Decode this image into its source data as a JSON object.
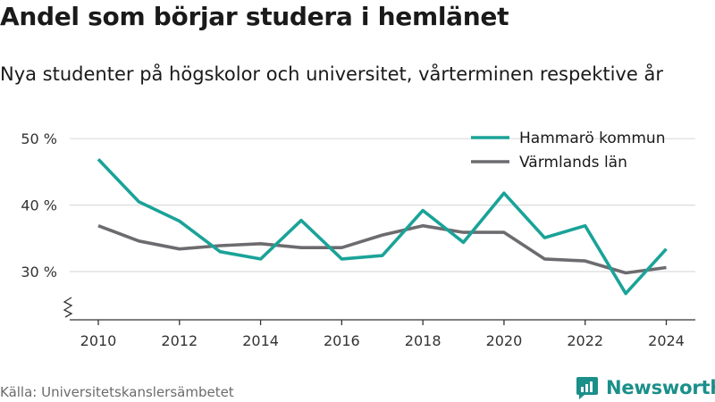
{
  "title": "Andel som börjar studera i hemlänet",
  "subtitle": "Nya studenter på högskolor och universitet, vårterminen respektive år",
  "source": "Källa: Universitetskanslersämbetet",
  "brand": {
    "name": "Newsworthy",
    "icon": "newsworthy-logo-icon",
    "color": "#1b8f8a"
  },
  "chart_data": {
    "type": "line",
    "title": "Andel som börjar studera i hemlänet",
    "subtitle": "Nya studenter på högskolor och universitet, vårterminen respektive år",
    "xlabel": "",
    "ylabel": "",
    "x": [
      2010,
      2011,
      2012,
      2013,
      2014,
      2015,
      2016,
      2017,
      2018,
      2019,
      2020,
      2021,
      2022,
      2023,
      2024
    ],
    "x_ticks": [
      2010,
      2012,
      2014,
      2016,
      2018,
      2020,
      2022,
      2024
    ],
    "x_tick_labels": [
      "2010",
      "2012",
      "2014",
      "2016",
      "2018",
      "2020",
      "2022",
      "2024"
    ],
    "y_ticks": [
      30,
      40,
      50
    ],
    "y_tick_labels": [
      "30 %",
      "40 %",
      "50 %"
    ],
    "ylim": [
      23,
      52
    ],
    "y_axis_break": true,
    "grid": true,
    "legend_position": "top-right",
    "series": [
      {
        "name": "Hammarö kommun",
        "color": "#1aa398",
        "values": [
          46.9,
          40.5,
          37.6,
          33.0,
          31.9,
          37.7,
          31.9,
          32.4,
          39.2,
          34.4,
          41.8,
          35.1,
          36.9,
          26.7,
          33.4
        ]
      },
      {
        "name": "Värmlands län",
        "color": "#6d6b6f",
        "values": [
          36.9,
          34.6,
          33.4,
          33.9,
          34.2,
          33.6,
          33.6,
          35.5,
          36.9,
          35.9,
          35.9,
          31.9,
          31.6,
          29.8,
          30.6
        ]
      }
    ]
  }
}
